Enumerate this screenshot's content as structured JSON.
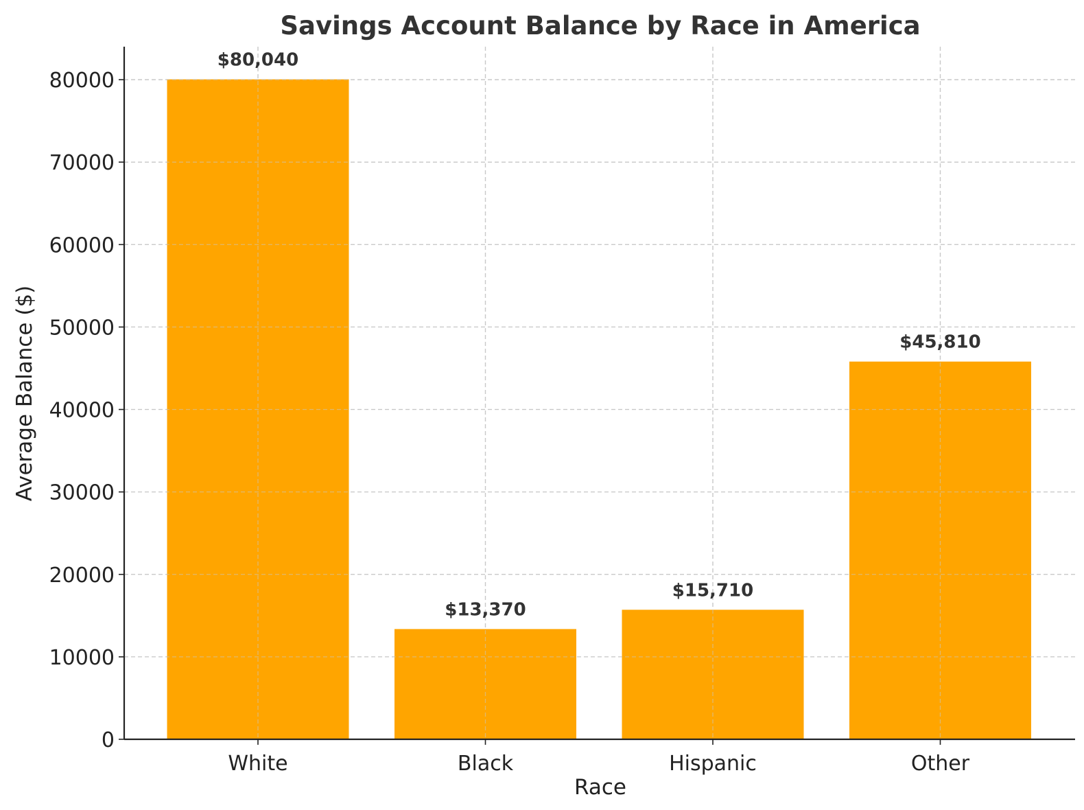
{
  "chart_data": {
    "type": "bar",
    "title": "Savings Account Balance by Race in America",
    "xlabel": "Race",
    "ylabel": "Average Balance ($)",
    "categories": [
      "White",
      "Black",
      "Hispanic",
      "Other"
    ],
    "values": [
      80040,
      13370,
      15710,
      45810
    ],
    "data_labels": [
      "$80,040",
      "$13,370",
      "$15,710",
      "$45,810"
    ],
    "ylim": [
      0,
      84000
    ],
    "yticks": [
      0,
      10000,
      20000,
      30000,
      40000,
      50000,
      60000,
      70000,
      80000
    ],
    "ytick_labels": [
      "0",
      "10000",
      "20000",
      "30000",
      "40000",
      "50000",
      "60000",
      "70000",
      "80000"
    ],
    "grid": true,
    "bar_color": "#FFA500"
  }
}
